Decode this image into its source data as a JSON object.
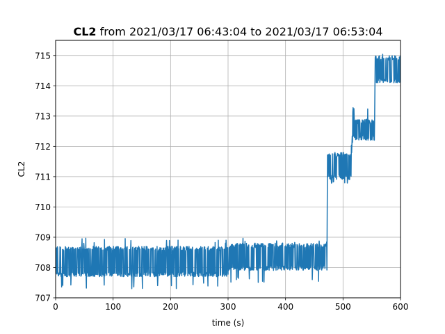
{
  "chart_data": {
    "type": "line",
    "title_var": "CL2",
    "title_rest": " from 2021/03/17 06:43:04 to 2021/03/17 06:53:04",
    "xlabel": "time (s)",
    "ylabel": "CL2",
    "xlim": [
      0,
      600
    ],
    "ylim": [
      707,
      715.5
    ],
    "x_ticks": [
      0,
      100,
      200,
      300,
      400,
      500,
      600
    ],
    "y_ticks": [
      707,
      708,
      709,
      710,
      711,
      712,
      713,
      714,
      715
    ],
    "grid": true,
    "line_color": "#1f77b4",
    "series": [
      {
        "segments": [
          {
            "x_start": 0,
            "x_end": 300,
            "low": 707.7,
            "high": 708.7,
            "spike_low": 707.3,
            "spike_high": 709.0
          },
          {
            "x_start": 300,
            "x_end": 472,
            "low": 707.9,
            "high": 708.8,
            "spike_low": 707.5,
            "spike_high": 709.0
          },
          {
            "x_start": 473,
            "x_end": 515,
            "low": 710.9,
            "high": 711.8,
            "spike_low": 710.7,
            "spike_high": 712.2
          },
          {
            "x_start": 516,
            "x_end": 555,
            "low": 712.2,
            "high": 712.9,
            "spike_low": 712.0,
            "spike_high": 713.3
          },
          {
            "x_start": 556,
            "x_end": 600,
            "low": 714.1,
            "high": 715.0,
            "spike_low": 714.0,
            "spike_high": 715.2
          }
        ]
      }
    ]
  }
}
